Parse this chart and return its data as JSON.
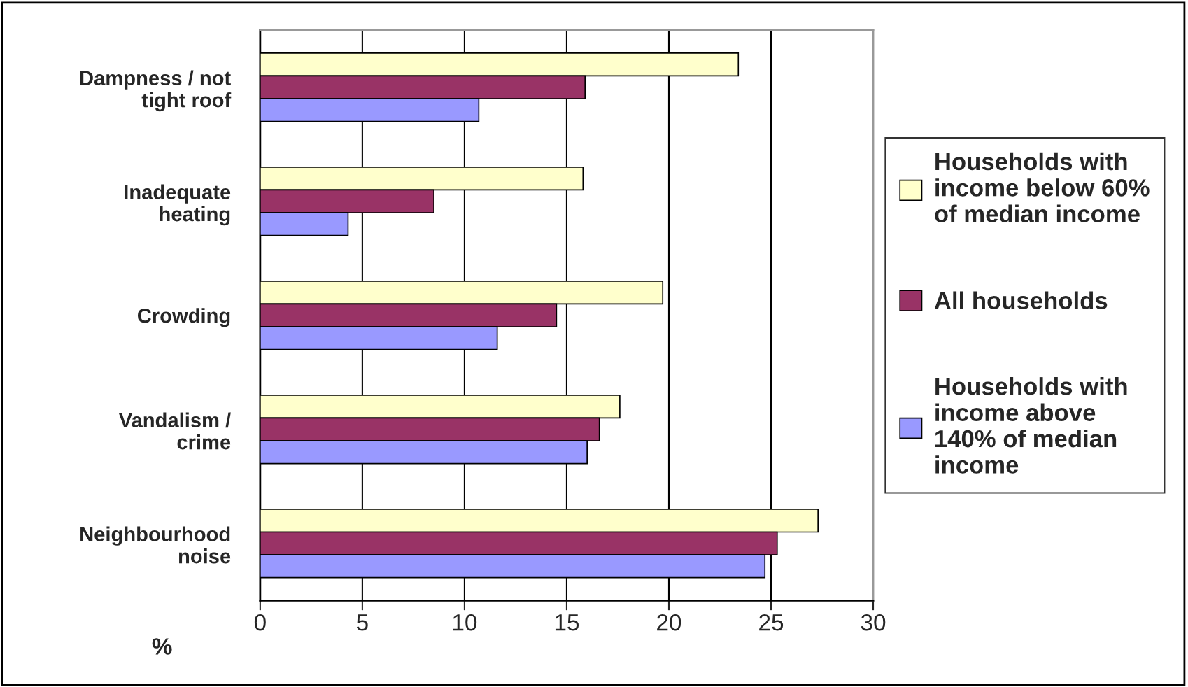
{
  "chart_data": {
    "type": "bar",
    "orientation": "horizontal",
    "xlabel": "%",
    "categories": [
      "Dampness / not\ntight roof",
      "Inadequate\nheating",
      "Crowding",
      "Vandalism /\ncrime",
      "Neighbourhood\nnoise"
    ],
    "series": [
      {
        "name": "Households with\nincome below 60%\nof median income",
        "color": "#ffffcc",
        "values": [
          23.4,
          15.8,
          19.7,
          17.6,
          27.3
        ]
      },
      {
        "name": "All households",
        "color": "#993366",
        "values": [
          15.9,
          8.5,
          14.5,
          16.6,
          25.3
        ]
      },
      {
        "name": "Households with\nincome above\n140% of median\nincome",
        "color": "#9999ff",
        "values": [
          10.7,
          4.3,
          11.6,
          16.0,
          24.7
        ]
      }
    ],
    "xlim": [
      0,
      30
    ],
    "xticks": [
      0,
      5,
      10,
      15,
      20,
      25,
      30
    ],
    "grid": "x",
    "legend": "right"
  }
}
